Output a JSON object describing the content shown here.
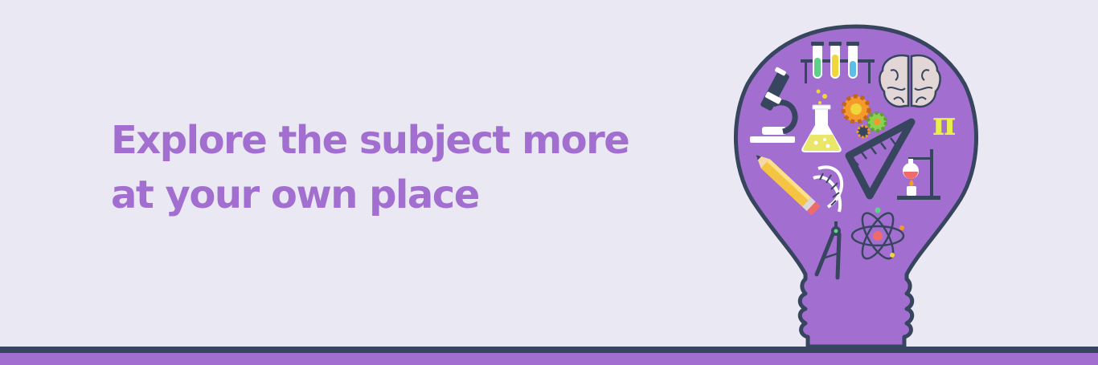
{
  "banner": {
    "headline_line1": "Explore the subject more",
    "headline_line2": "at your own place"
  },
  "colors": {
    "background": "#eae8f2",
    "accent_purple": "#a26fd1",
    "outline_navy": "#37465e",
    "pi_yellow": "#e8f04c"
  },
  "illustration": {
    "pi_symbol": "π",
    "icons": [
      "test-tubes-icon",
      "brain-icon",
      "microscope-icon",
      "flask-icon",
      "gears-icon",
      "pi-symbol",
      "set-square-icon",
      "pencil-icon",
      "dna-icon",
      "lab-stand-flask-icon",
      "compass-icon",
      "atom-icon"
    ]
  }
}
